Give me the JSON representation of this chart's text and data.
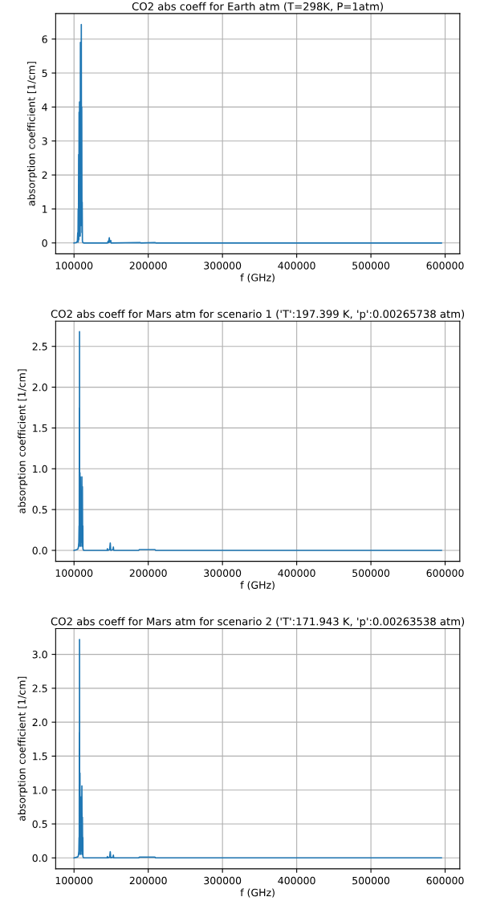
{
  "chart_data": [
    {
      "type": "line",
      "title": "CO2 abs coeff for Earth atm (T=298K, P=1atm)",
      "xlabel": "f (GHz)",
      "ylabel": "absorption coefficient [1/cm]",
      "x": [
        100000,
        103000,
        104500,
        105000,
        105300,
        105600,
        105900,
        106200,
        106500,
        106800,
        107100,
        107400,
        107700,
        108000,
        108300,
        108600,
        108900,
        109200,
        109500,
        109800,
        110100,
        110400,
        110700,
        111000,
        111300,
        112000,
        113000,
        145000,
        146000,
        146500,
        147500,
        148200,
        149500,
        150000,
        189000,
        190000,
        209000,
        210000,
        595000
      ],
      "series": [
        {
          "color": "#1f77b4",
          "values": [
            0,
            0.01,
            0.05,
            0.3,
            0.02,
            1.0,
            0.05,
            2.6,
            0.1,
            3.85,
            0.2,
            4.15,
            0.3,
            1.9,
            0.2,
            5.9,
            0.5,
            5.3,
            0.8,
            6.43,
            1.0,
            4.0,
            0.3,
            1.2,
            0.05,
            0.01,
            0,
            0,
            0.05,
            0.01,
            0.15,
            0.02,
            0.07,
            0,
            0.01,
            0,
            0.01,
            0,
            0
          ]
        }
      ],
      "xlim": [
        75250,
        619750
      ],
      "xticks": [
        100000,
        200000,
        300000,
        400000,
        500000,
        600000
      ],
      "ylim": [
        -0.32,
        6.75
      ],
      "yticks": [
        0,
        1,
        2,
        3,
        4,
        5,
        6
      ],
      "grid": true,
      "marker": "none",
      "line_style": "solid"
    },
    {
      "type": "line",
      "title": "CO2 abs coeff for Mars atm for scenario 1 ('T':197.399 K, 'p':0.00265738 atm)",
      "xlabel": "f (GHz)",
      "ylabel": "absorption coefficient [1/cm]",
      "x": [
        100000,
        104000,
        105500,
        106000,
        106500,
        106800,
        107000,
        107200,
        107300,
        107400,
        107600,
        108000,
        108300,
        108600,
        108900,
        109300,
        109800,
        110200,
        110600,
        110900,
        111300,
        111600,
        111900,
        112000,
        112400,
        113000,
        144500,
        145000,
        145500,
        148000,
        148800,
        149500,
        152500,
        153000,
        153500,
        187000,
        188000,
        209000,
        210000,
        595000
      ],
      "series": [
        {
          "color": "#1f77b4",
          "values": [
            0,
            0.01,
            0.02,
            0.05,
            0.1,
            0.3,
            0.05,
            1.75,
            0.1,
            2.68,
            0.2,
            0.95,
            0.1,
            0.9,
            0.05,
            0.6,
            0.1,
            0.35,
            0.9,
            0.05,
            0.78,
            0.1,
            0.3,
            0.02,
            0.01,
            0,
            0,
            0.02,
            0,
            0.01,
            0.09,
            0,
            0.01,
            0.04,
            0,
            0,
            0.01,
            0.01,
            0,
            0
          ]
        }
      ],
      "xlim": [
        75250,
        619750
      ],
      "xticks": [
        100000,
        200000,
        300000,
        400000,
        500000,
        600000
      ],
      "ylim": [
        -0.134,
        2.81
      ],
      "yticks": [
        {
          "value": 0,
          "label": "0.0"
        },
        {
          "value": 0.5,
          "label": "0.5"
        },
        {
          "value": 1,
          "label": "1.0"
        },
        {
          "value": 1.5,
          "label": "1.5"
        },
        {
          "value": 2,
          "label": "2.0"
        },
        {
          "value": 2.5,
          "label": "2.5"
        }
      ],
      "grid": true,
      "marker": "none",
      "line_style": "solid"
    },
    {
      "type": "line",
      "title": "CO2 abs coeff for Mars atm for scenario 2 ('T':171.943 K, 'p':0.00263538 atm)",
      "xlabel": "f (GHz)",
      "ylabel": "absorption coefficient [1/cm]",
      "x": [
        100000,
        104000,
        105500,
        106000,
        106500,
        106800,
        107000,
        107200,
        107300,
        107400,
        107600,
        108000,
        108300,
        108600,
        108900,
        109300,
        109800,
        110200,
        110600,
        110900,
        111300,
        111600,
        111900,
        112000,
        112400,
        113000,
        144500,
        145000,
        145500,
        148000,
        148800,
        149500,
        152500,
        153000,
        153500,
        187000,
        188000,
        209000,
        210000,
        595000
      ],
      "series": [
        {
          "color": "#1f77b4",
          "values": [
            0,
            0.01,
            0.02,
            0.05,
            0.1,
            0.3,
            0.05,
            1.85,
            0.1,
            3.22,
            0.2,
            1.25,
            0.1,
            0.7,
            0.05,
            0.5,
            0.9,
            0.1,
            1.06,
            0.05,
            0.6,
            0.1,
            0.3,
            0.02,
            0.01,
            0,
            0,
            0.02,
            0,
            0.01,
            0.09,
            0,
            0.01,
            0.04,
            0,
            0,
            0.01,
            0.01,
            0,
            0
          ]
        }
      ],
      "xlim": [
        75250,
        619750
      ],
      "xticks": [
        100000,
        200000,
        300000,
        400000,
        500000,
        600000
      ],
      "ylim": [
        -0.161,
        3.38
      ],
      "yticks": [
        {
          "value": 0,
          "label": "0.0"
        },
        {
          "value": 0.5,
          "label": "0.5"
        },
        {
          "value": 1,
          "label": "1.0"
        },
        {
          "value": 1.5,
          "label": "1.5"
        },
        {
          "value": 2,
          "label": "2.0"
        },
        {
          "value": 2.5,
          "label": "2.5"
        },
        {
          "value": 3,
          "label": "3.0"
        }
      ],
      "grid": true,
      "marker": "none",
      "line_style": "solid"
    }
  ]
}
